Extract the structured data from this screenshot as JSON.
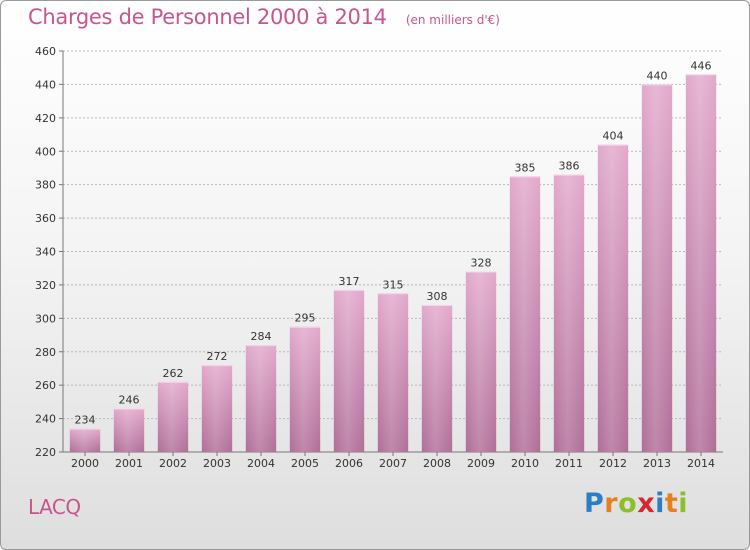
{
  "header": {
    "title": "Charges de Personnel 2000 à 2014",
    "subtitle": "(en milliers d'€)"
  },
  "footer": {
    "commune": "LACQ",
    "brand": "Proxiti",
    "brand_letters": [
      {
        "char": "P",
        "color": "#2a7ec6"
      },
      {
        "char": "r",
        "color": "#e5801f"
      },
      {
        "char": "o",
        "color": "#8cbf2b"
      },
      {
        "char": "x",
        "color": "#d9262b"
      },
      {
        "char": "i",
        "color": "#2a7ec6"
      },
      {
        "char": "t",
        "color": "#e5801f"
      },
      {
        "char": "i",
        "color": "#8cbf2b"
      }
    ]
  },
  "colors": {
    "bar_top": "#e2a9cc",
    "bar_bottom": "#b06e98",
    "accent": "#c8558e"
  },
  "chart_data": {
    "type": "bar",
    "categories": [
      "2000",
      "2001",
      "2002",
      "2003",
      "2004",
      "2005",
      "2006",
      "2007",
      "2008",
      "2009",
      "2010",
      "2011",
      "2012",
      "2013",
      "2014"
    ],
    "values": [
      234,
      246,
      262,
      272,
      284,
      295,
      317,
      315,
      308,
      328,
      385,
      386,
      404,
      440,
      446
    ],
    "title": "Charges de Personnel 2000 à 2014",
    "subtitle": "(en milliers d'€)",
    "xlabel": "",
    "ylabel": "",
    "ylim": [
      220,
      460
    ],
    "yticks": [
      220,
      240,
      260,
      280,
      300,
      320,
      340,
      360,
      380,
      400,
      420,
      440,
      460
    ],
    "grid": true,
    "data_labels": true
  }
}
